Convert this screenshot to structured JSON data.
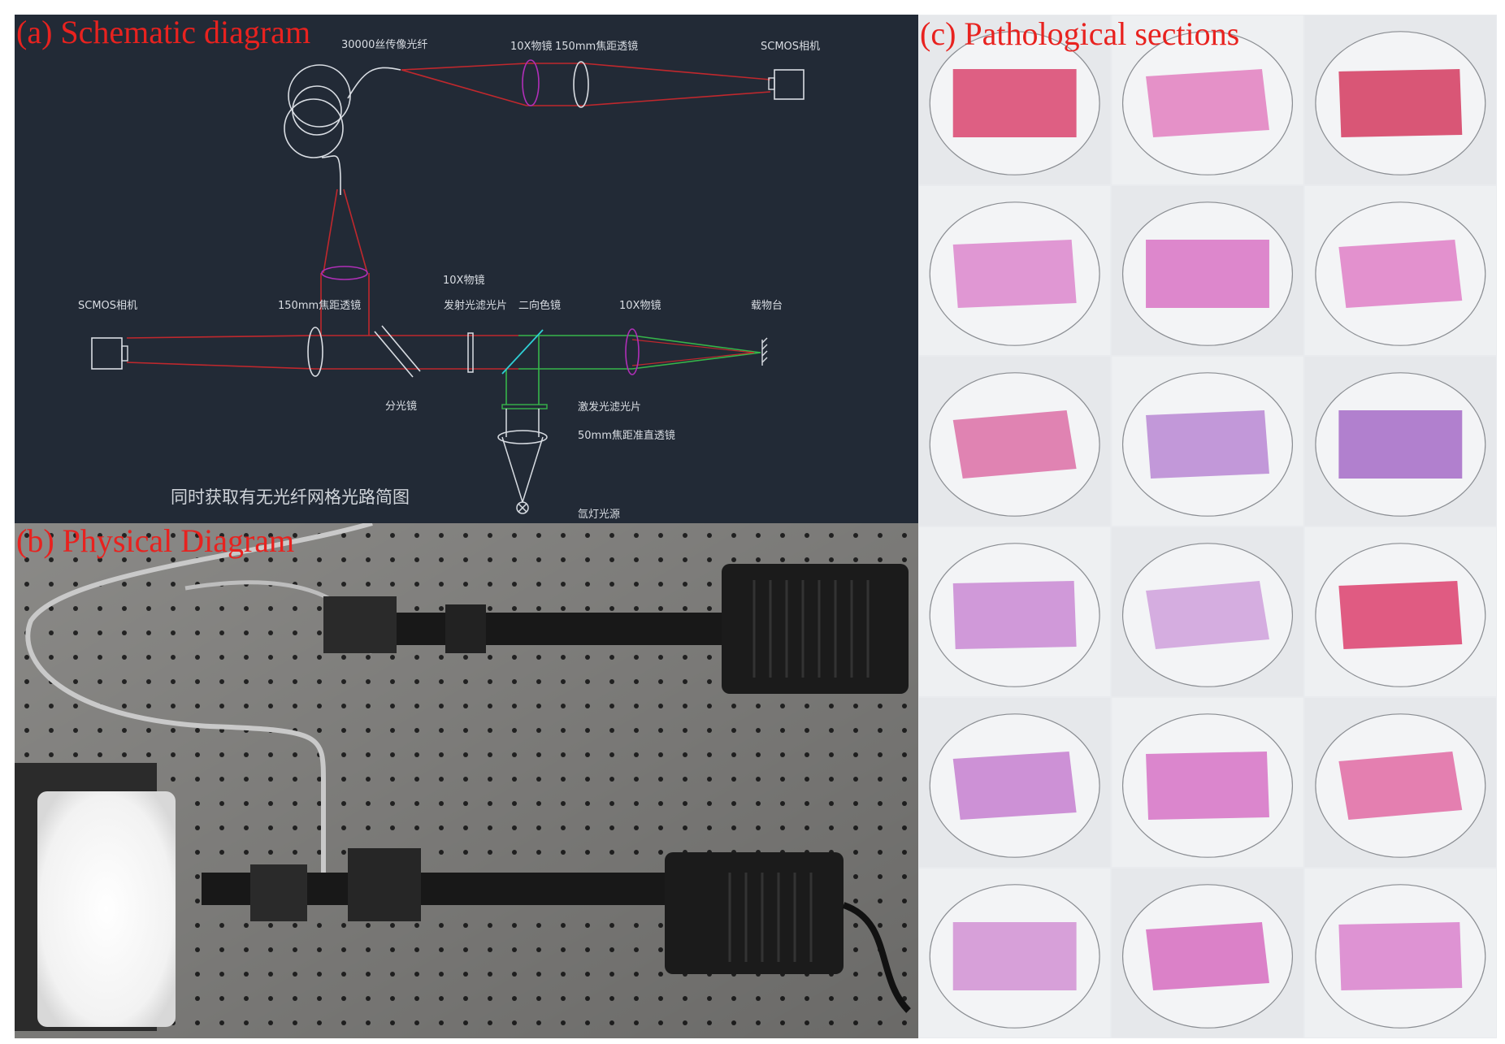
{
  "figure": {
    "panel_a": {
      "title": "(a) Schematic diagram",
      "labels": {
        "fiber": "30000丝传像光纤",
        "top_objective": "10X物镜",
        "top_lens": "150mm焦距透镜",
        "top_camera": "SCMOS相机",
        "mid_objective": "10X物镜",
        "left_camera": "SCMOS相机",
        "left_lens": "150mm焦距透镜",
        "emission_filter": "发射光滤光片",
        "dichroic": "二向色镜",
        "right_objective": "10X物镜",
        "stage": "载物台",
        "beamsplitter": "分光镜",
        "excitation_filter": "激发光滤光片",
        "collimator": "50mm焦距准直透镜",
        "lamp": "氙灯光源"
      },
      "caption": "同时获取有无光纤网格光路简图",
      "colors": {
        "background": "#222a36",
        "emission_path": "#c0282d",
        "excitation_path": "#36b54a",
        "lens": "#d9dde3",
        "objective": "#b02fb8",
        "dichroic": "#2fd0d6"
      }
    },
    "panel_b": {
      "title": "(b) Physical Diagram"
    },
    "panel_c": {
      "title": "(c) Pathological sections",
      "grid": {
        "rows": 6,
        "cols": 3
      }
    }
  }
}
